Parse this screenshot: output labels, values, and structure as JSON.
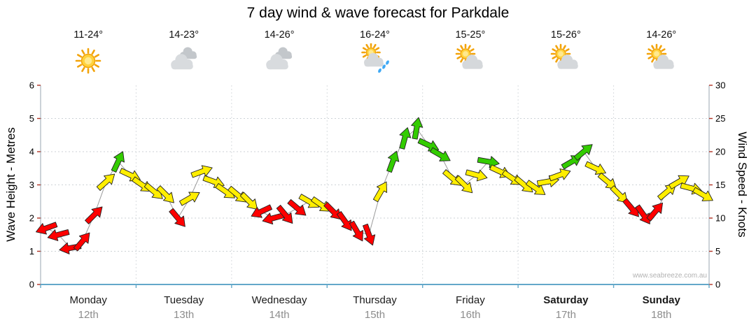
{
  "title": "7 day wind & wave forecast for Parkdale",
  "watermark": "www.seabreeze.com.au",
  "chart_data": {
    "type": "line",
    "title": "7 day wind & wave forecast for Parkdale",
    "ylabel_left": "Wave Height - Metres",
    "ylabel_right": "Wind Speed - Knots",
    "ylim_left": [
      0,
      6
    ],
    "ylim_right": [
      0,
      30
    ],
    "yticks_left": [
      0,
      1,
      2,
      3,
      4,
      5,
      6
    ],
    "yticks_right": [
      0,
      5,
      10,
      15,
      20,
      25,
      30
    ],
    "grid": true,
    "legend": "none",
    "days": [
      {
        "name": "Monday",
        "date": "12th",
        "temp": "11-24°",
        "icon": "sunny",
        "bold": false
      },
      {
        "name": "Tuesday",
        "date": "13th",
        "temp": "14-23°",
        "icon": "cloudy",
        "bold": false
      },
      {
        "name": "Wednesday",
        "date": "14th",
        "temp": "14-26°",
        "icon": "cloudy",
        "bold": false
      },
      {
        "name": "Thursday",
        "date": "15th",
        "temp": "16-24°",
        "icon": "sun-showers",
        "bold": false
      },
      {
        "name": "Friday",
        "date": "16th",
        "temp": "15-25°",
        "icon": "partly-cloudy",
        "bold": false
      },
      {
        "name": "Saturday",
        "date": "17th",
        "temp": "15-26°",
        "icon": "partly-cloudy",
        "bold": true
      },
      {
        "name": "Sunday",
        "date": "18th",
        "temp": "14-26°",
        "icon": "partly-cloudy",
        "bold": true
      }
    ],
    "series": [
      {
        "name": "Wind speed with direction arrows",
        "points_per_day": 8,
        "point_format": [
          "knots",
          "arrow_direction_deg_clockwise_from_east"
        ],
        "points": [
          [
            8.5,
            160
          ],
          [
            7.5,
            165
          ],
          [
            5.5,
            170
          ],
          [
            6.5,
            310
          ],
          [
            10.5,
            315
          ],
          [
            15.5,
            318
          ],
          [
            18.5,
            295
          ],
          [
            16.5,
            25
          ],
          [
            15,
            35
          ],
          [
            14,
            40
          ],
          [
            13.5,
            45
          ],
          [
            10,
            50
          ],
          [
            13,
            330
          ],
          [
            17,
            340
          ],
          [
            15.5,
            20
          ],
          [
            14,
            35
          ],
          [
            13.5,
            40
          ],
          [
            12.5,
            45
          ],
          [
            11,
            155
          ],
          [
            10,
            165
          ],
          [
            10.5,
            50
          ],
          [
            11.5,
            40
          ],
          [
            12.5,
            30
          ],
          [
            12,
            35
          ],
          [
            11,
            45
          ],
          [
            9.5,
            55
          ],
          [
            8,
            60
          ],
          [
            7.5,
            70
          ],
          [
            14,
            300
          ],
          [
            18.5,
            290
          ],
          [
            22,
            285
          ],
          [
            23.5,
            280
          ],
          [
            21,
            25
          ],
          [
            19.5,
            30
          ],
          [
            16,
            40
          ],
          [
            15,
            45
          ],
          [
            16.5,
            15
          ],
          [
            18.5,
            10
          ],
          [
            17,
            25
          ],
          [
            16,
            35
          ],
          [
            15,
            40
          ],
          [
            14.5,
            35
          ],
          [
            15.5,
            350
          ],
          [
            16.5,
            340
          ],
          [
            18.5,
            330
          ],
          [
            20,
            320
          ],
          [
            17.5,
            25
          ],
          [
            15.5,
            40
          ],
          [
            13.5,
            45
          ],
          [
            11.5,
            50
          ],
          [
            10.5,
            55
          ],
          [
            11,
            310
          ],
          [
            14,
            320
          ],
          [
            15.5,
            330
          ],
          [
            14.5,
            15
          ],
          [
            13.5,
            30
          ]
        ]
      }
    ],
    "wind_speed_colors": {
      "red": "#ff0000",
      "yellow": "#ffee00",
      "green": "#33cc00",
      "line": "#9a9a9a"
    },
    "color_thresholds": {
      "red_below_knots": 12,
      "green_from_knots": 18
    }
  }
}
